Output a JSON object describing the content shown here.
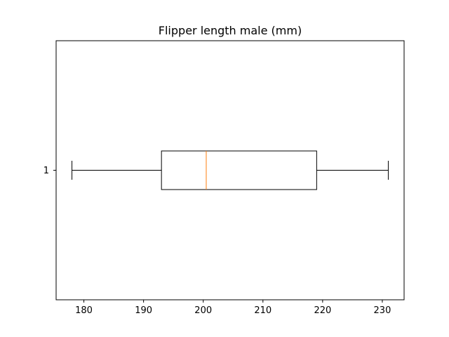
{
  "chart_data": {
    "type": "boxplot",
    "orientation": "horizontal",
    "title": "Flipper length male (mm)",
    "xlabel": "",
    "ylabel": "",
    "xlim": [
      175.35,
      233.65
    ],
    "xticks": [
      180,
      190,
      200,
      210,
      220,
      230
    ],
    "yticks": [
      "1"
    ],
    "grid": false,
    "boxes": [
      {
        "label": "1",
        "whisker_low": 178,
        "q1": 193,
        "median": 200.5,
        "q3": 219,
        "whisker_high": 231
      }
    ],
    "colors": {
      "box": "#000000",
      "median": "#ff7f0e",
      "axes": "#000000"
    }
  }
}
